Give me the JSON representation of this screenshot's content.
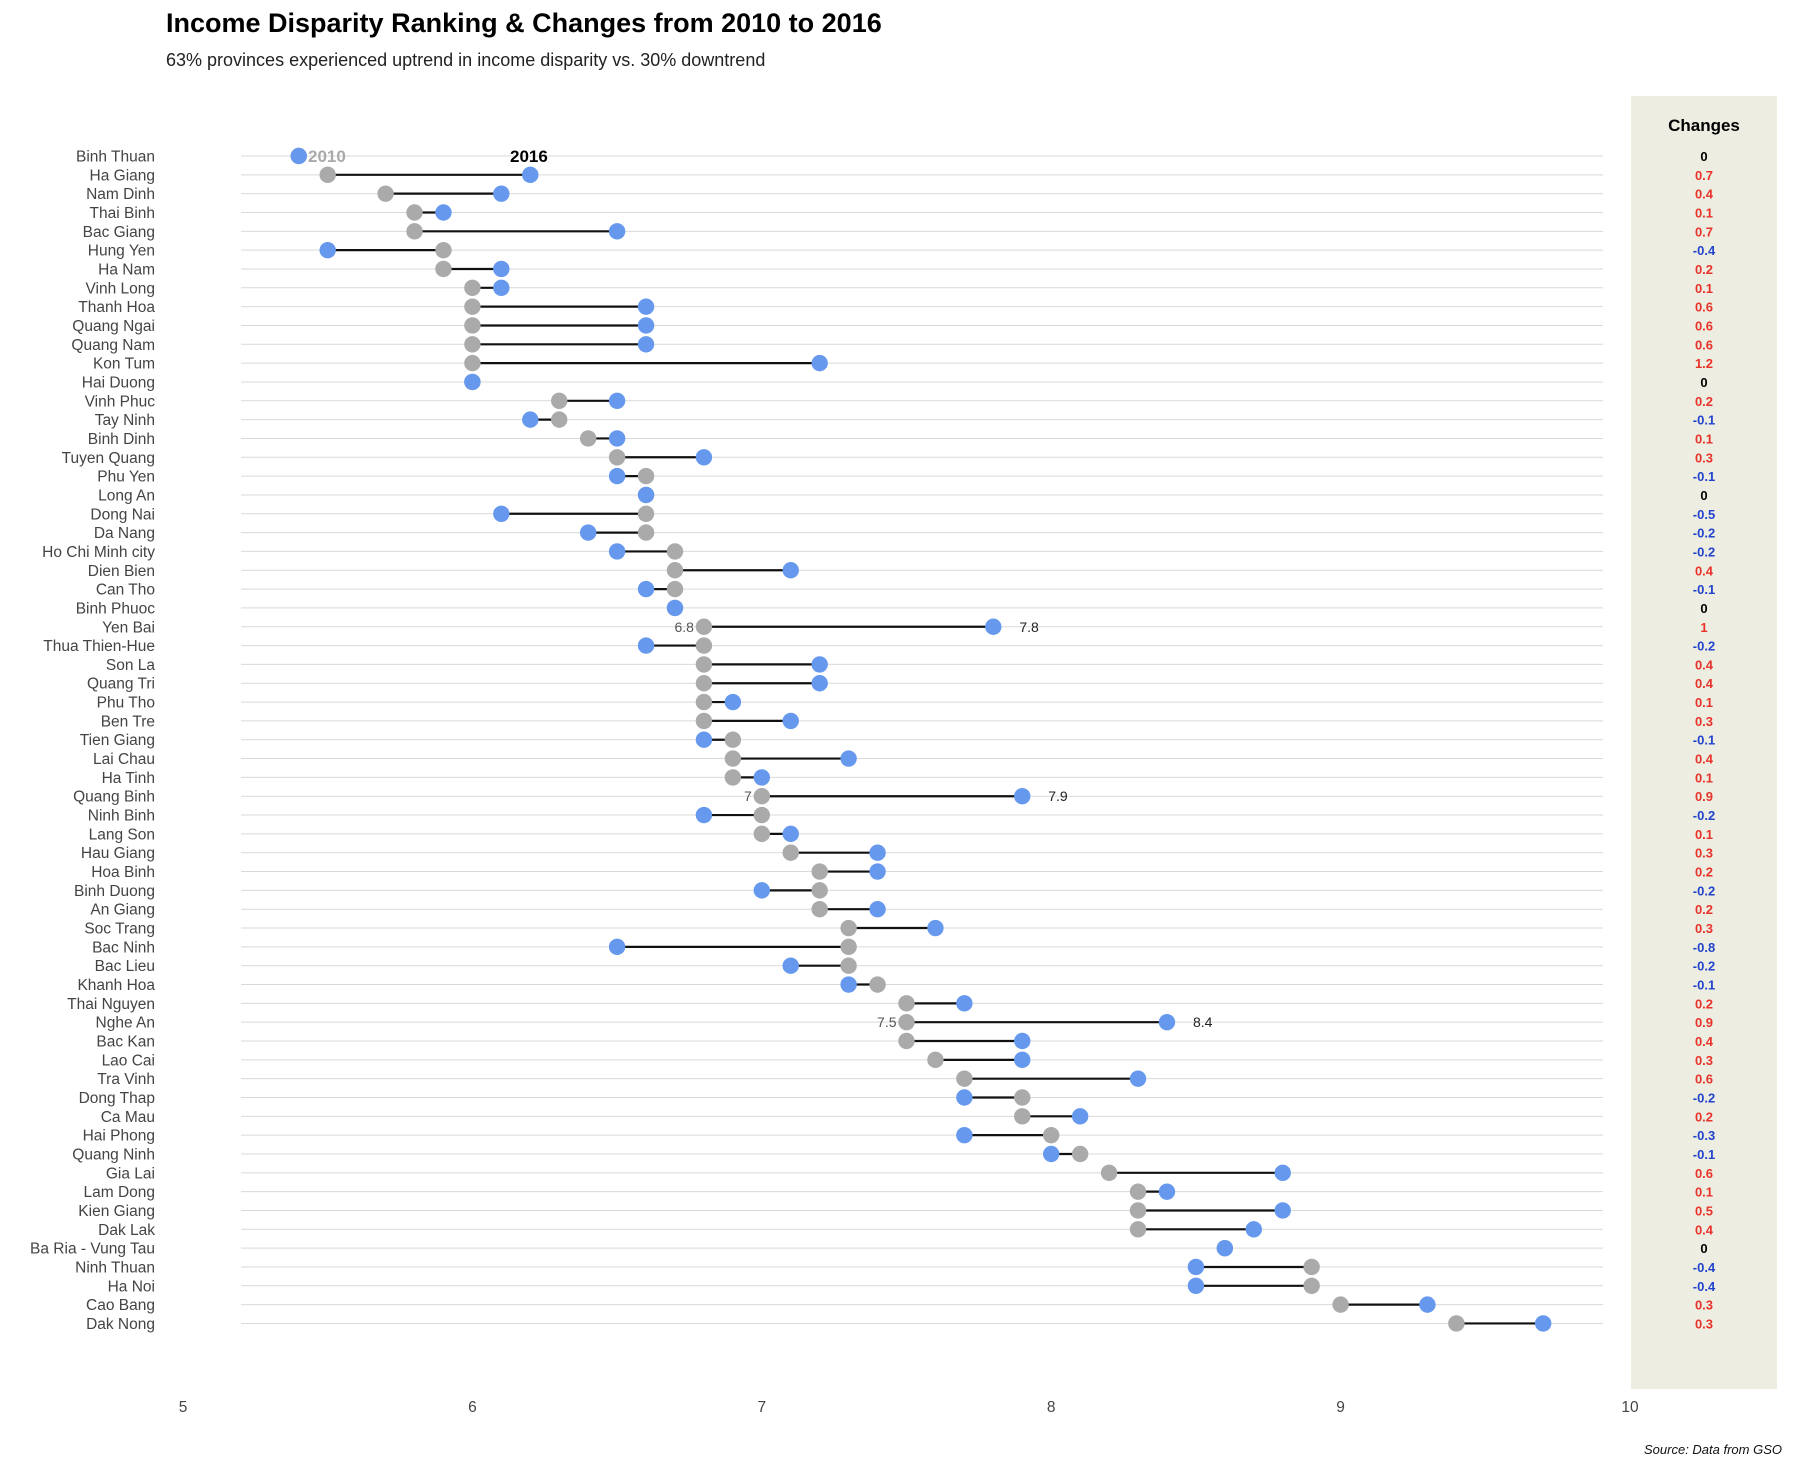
{
  "title": "Income Disparity Ranking & Changes from 2010 to 2016",
  "subtitle": "63% provinces experienced uptrend in income disparity vs. 30% downtrend",
  "source": "Source: Data from GSO",
  "colors": {
    "y2010": "#aaaaaa",
    "y2016": "#6699ee",
    "positive": "#e8332a",
    "negative": "#2244cc",
    "zero": "#000000",
    "panel": "#eeede2"
  },
  "chart_data": {
    "type": "dumbbell",
    "title": "Income Disparity Ranking & Changes from 2010 to 2016",
    "subtitle": "63% provinces experienced uptrend in income disparity vs. 30% downtrend",
    "xlim": [
      5,
      10
    ],
    "x_ticks": [
      "5",
      "6",
      "7",
      "8",
      "9",
      "10"
    ],
    "legend": {
      "label_2010": "2010",
      "label_2016": "2016"
    },
    "changes_header": "Changes",
    "grid": true,
    "annotations": [
      {
        "province": "Yen Bai",
        "left": "6.8",
        "right": "7.8"
      },
      {
        "province": "Quang Binh",
        "left": "7",
        "right": "7.9"
      },
      {
        "province": "Nghe An",
        "left": "7.5",
        "right": "8.4"
      }
    ],
    "provinces": [
      {
        "name": "Binh Thuan",
        "v2010": 5.4,
        "v2016": 5.4,
        "change": "0"
      },
      {
        "name": "Ha Giang",
        "v2010": 5.5,
        "v2016": 6.2,
        "change": "0.7"
      },
      {
        "name": "Nam Dinh",
        "v2010": 5.7,
        "v2016": 6.1,
        "change": "0.4"
      },
      {
        "name": "Thai Binh",
        "v2010": 5.8,
        "v2016": 5.9,
        "change": "0.1"
      },
      {
        "name": "Bac Giang",
        "v2010": 5.8,
        "v2016": 6.5,
        "change": "0.7"
      },
      {
        "name": "Hung Yen",
        "v2010": 5.9,
        "v2016": 5.5,
        "change": "-0.4"
      },
      {
        "name": "Ha Nam",
        "v2010": 5.9,
        "v2016": 6.1,
        "change": "0.2"
      },
      {
        "name": "Vinh Long",
        "v2010": 6.0,
        "v2016": 6.1,
        "change": "0.1"
      },
      {
        "name": "Thanh Hoa",
        "v2010": 6.0,
        "v2016": 6.6,
        "change": "0.6"
      },
      {
        "name": "Quang  Ngai",
        "v2010": 6.0,
        "v2016": 6.6,
        "change": "0.6"
      },
      {
        "name": "Quang  Nam",
        "v2010": 6.0,
        "v2016": 6.6,
        "change": "0.6"
      },
      {
        "name": "Kon Tum",
        "v2010": 6.0,
        "v2016": 7.2,
        "change": "1.2"
      },
      {
        "name": "Hai Duong",
        "v2010": 6.0,
        "v2016": 6.0,
        "change": "0"
      },
      {
        "name": "Vinh Phuc",
        "v2010": 6.3,
        "v2016": 6.5,
        "change": "0.2"
      },
      {
        "name": "Tay Ninh",
        "v2010": 6.3,
        "v2016": 6.2,
        "change": "-0.1"
      },
      {
        "name": "Binh Dinh",
        "v2010": 6.4,
        "v2016": 6.5,
        "change": "0.1"
      },
      {
        "name": "Tuyen Quang",
        "v2010": 6.5,
        "v2016": 6.8,
        "change": "0.3"
      },
      {
        "name": "Phu Yen",
        "v2010": 6.6,
        "v2016": 6.5,
        "change": "-0.1"
      },
      {
        "name": "Long An",
        "v2010": 6.6,
        "v2016": 6.6,
        "change": "0"
      },
      {
        "name": "Dong Nai",
        "v2010": 6.6,
        "v2016": 6.1,
        "change": "-0.5"
      },
      {
        "name": "Da Nang",
        "v2010": 6.6,
        "v2016": 6.4,
        "change": "-0.2"
      },
      {
        "name": "Ho Chi Minh city",
        "v2010": 6.7,
        "v2016": 6.5,
        "change": "-0.2"
      },
      {
        "name": "Dien Bien",
        "v2010": 6.7,
        "v2016": 7.1,
        "change": "0.4"
      },
      {
        "name": "Can Tho",
        "v2010": 6.7,
        "v2016": 6.6,
        "change": "-0.1"
      },
      {
        "name": "Binh Phuoc",
        "v2010": 6.7,
        "v2016": 6.7,
        "change": "0"
      },
      {
        "name": "Yen Bai",
        "v2010": 6.8,
        "v2016": 7.8,
        "change": "1"
      },
      {
        "name": "Thua Thien-Hue",
        "v2010": 6.8,
        "v2016": 6.6,
        "change": "-0.2"
      },
      {
        "name": "Son La",
        "v2010": 6.8,
        "v2016": 7.2,
        "change": "0.4"
      },
      {
        "name": "Quang Tri",
        "v2010": 6.8,
        "v2016": 7.2,
        "change": "0.4"
      },
      {
        "name": "Phu Tho",
        "v2010": 6.8,
        "v2016": 6.9,
        "change": "0.1"
      },
      {
        "name": "Ben Tre",
        "v2010": 6.8,
        "v2016": 7.1,
        "change": "0.3"
      },
      {
        "name": "Tien Giang",
        "v2010": 6.9,
        "v2016": 6.8,
        "change": "-0.1"
      },
      {
        "name": "Lai Chau",
        "v2010": 6.9,
        "v2016": 7.3,
        "change": "0.4"
      },
      {
        "name": "Ha Tinh",
        "v2010": 6.9,
        "v2016": 7.0,
        "change": "0.1"
      },
      {
        "name": "Quang Binh",
        "v2010": 7.0,
        "v2016": 7.9,
        "change": "0.9"
      },
      {
        "name": "Ninh Binh",
        "v2010": 7.0,
        "v2016": 6.8,
        "change": "-0.2"
      },
      {
        "name": "Lang Son",
        "v2010": 7.0,
        "v2016": 7.1,
        "change": "0.1"
      },
      {
        "name": "Hau Giang",
        "v2010": 7.1,
        "v2016": 7.4,
        "change": "0.3"
      },
      {
        "name": "Hoa Binh",
        "v2010": 7.2,
        "v2016": 7.4,
        "change": "0.2"
      },
      {
        "name": "Binh Duong",
        "v2010": 7.2,
        "v2016": 7.0,
        "change": "-0.2"
      },
      {
        "name": "An Giang",
        "v2010": 7.2,
        "v2016": 7.4,
        "change": "0.2"
      },
      {
        "name": "Soc Trang",
        "v2010": 7.3,
        "v2016": 7.6,
        "change": "0.3"
      },
      {
        "name": "Bac Ninh",
        "v2010": 7.3,
        "v2016": 6.5,
        "change": "-0.8"
      },
      {
        "name": "Bac Lieu",
        "v2010": 7.3,
        "v2016": 7.1,
        "change": "-0.2"
      },
      {
        "name": "Khanh  Hoa",
        "v2010": 7.4,
        "v2016": 7.3,
        "change": "-0.1"
      },
      {
        "name": "Thai Nguyen",
        "v2010": 7.5,
        "v2016": 7.7,
        "change": "0.2"
      },
      {
        "name": "Nghe An",
        "v2010": 7.5,
        "v2016": 8.4,
        "change": "0.9"
      },
      {
        "name": "Bac Kan",
        "v2010": 7.5,
        "v2016": 7.9,
        "change": "0.4"
      },
      {
        "name": "Lao Cai",
        "v2010": 7.6,
        "v2016": 7.9,
        "change": "0.3"
      },
      {
        "name": "Tra Vinh",
        "v2010": 7.7,
        "v2016": 8.3,
        "change": "0.6"
      },
      {
        "name": "Dong Thap",
        "v2010": 7.9,
        "v2016": 7.7,
        "change": "-0.2"
      },
      {
        "name": "Ca Mau",
        "v2010": 7.9,
        "v2016": 8.1,
        "change": "0.2"
      },
      {
        "name": "Hai Phong",
        "v2010": 8.0,
        "v2016": 7.7,
        "change": "-0.3"
      },
      {
        "name": "Quang Ninh",
        "v2010": 8.1,
        "v2016": 8.0,
        "change": "-0.1"
      },
      {
        "name": "Gia Lai",
        "v2010": 8.2,
        "v2016": 8.8,
        "change": "0.6"
      },
      {
        "name": "Lam Dong",
        "v2010": 8.3,
        "v2016": 8.4,
        "change": "0.1"
      },
      {
        "name": "Kien  Giang",
        "v2010": 8.3,
        "v2016": 8.8,
        "change": "0.5"
      },
      {
        "name": "Dak Lak",
        "v2010": 8.3,
        "v2016": 8.7,
        "change": "0.4"
      },
      {
        "name": "Ba Ria - Vung Tau",
        "v2010": 8.6,
        "v2016": 8.6,
        "change": "0"
      },
      {
        "name": "Ninh  Thuan",
        "v2010": 8.9,
        "v2016": 8.5,
        "change": "-0.4"
      },
      {
        "name": "Ha Noi",
        "v2010": 8.9,
        "v2016": 8.5,
        "change": "-0.4"
      },
      {
        "name": "Cao Bang",
        "v2010": 9.0,
        "v2016": 9.3,
        "change": "0.3"
      },
      {
        "name": "Dak Nong",
        "v2010": 9.4,
        "v2016": 9.7,
        "change": "0.3"
      }
    ]
  }
}
